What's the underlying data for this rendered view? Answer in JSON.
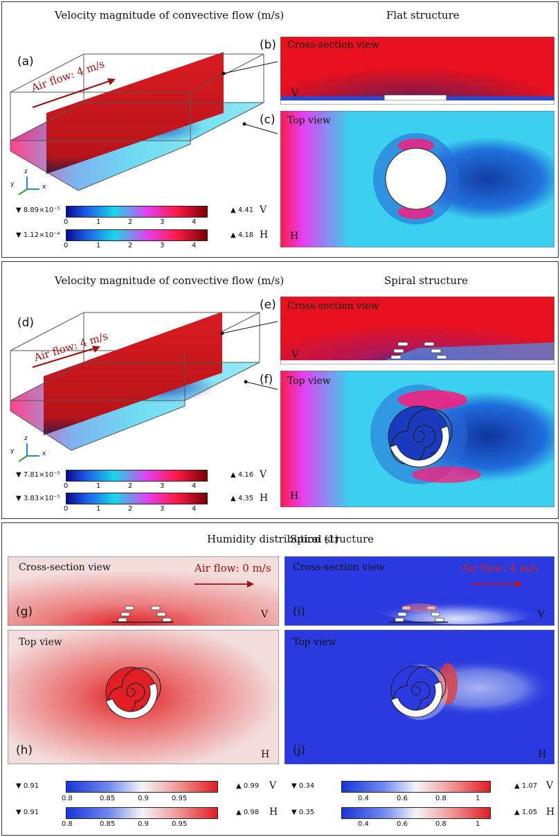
{
  "panel1": {
    "title_left": "Velocity magnitude of convective flow (m/s)",
    "title_right": "Flat structure",
    "label_a": "(a)",
    "label_b": "(b)",
    "label_c": "(c)",
    "air_flow": "Air flow: 4 m/s",
    "cross_section": "Cross-section view",
    "top_view": "Top view",
    "v_tag": "V",
    "h_tag": "H",
    "axes": {
      "z": "z",
      "y": "y",
      "x": "x"
    },
    "colorbar_V": {
      "min": "▼ 8.89×10⁻⁵",
      "max": "▲ 4.41",
      "tag": "V",
      "ticks": [
        "0",
        "1",
        "2",
        "3",
        "4"
      ]
    },
    "colorbar_H": {
      "min": "▼ 1.12×10⁻⁴",
      "max": "▲ 4.18",
      "tag": "H",
      "ticks": [
        "0",
        "1",
        "2",
        "3",
        "4"
      ]
    }
  },
  "panel2": {
    "title_left": "Velocity magnitude of convective flow (m/s)",
    "title_right": "Spiral structure",
    "label_d": "(d)",
    "label_e": "(e)",
    "label_f": "(f)",
    "air_flow": "Air flow: 4 m/s",
    "cross_section": "Cross-section view",
    "top_view": "Top view",
    "v_tag": "V",
    "h_tag": "H",
    "axes": {
      "z": "z",
      "y": "y",
      "x": "x"
    },
    "colorbar_V": {
      "min": "▼ 7.81×10⁻⁵",
      "max": "▲ 4.16",
      "tag": "V",
      "ticks": [
        "0",
        "1",
        "2",
        "3",
        "4"
      ]
    },
    "colorbar_H": {
      "min": "▼ 3.83×10⁻⁵",
      "max": "▲ 4.35",
      "tag": "H",
      "ticks": [
        "0",
        "1",
        "2",
        "3",
        "4"
      ]
    }
  },
  "panel3": {
    "title_left": "Humidity distribution (1)",
    "title_right": "Spiral structure",
    "label_g": "(g)",
    "label_h": "(h)",
    "label_i": "(i)",
    "label_j": "(j)",
    "cross_section_left": "Cross-section view",
    "cross_section_right": "Cross-section view",
    "top_view_left": "Top view",
    "top_view_right": "Top view",
    "air_flow_left": "Air flow: 0 m/s",
    "air_flow_right": "Air flow: 4 m/s",
    "v_tag": "V",
    "h_tag": "H",
    "left_V": {
      "min": "▼ 0.91",
      "max": "▲ 0.99",
      "tag": "V",
      "ticks": [
        "0.8",
        "0.85",
        "0.9",
        "0.95"
      ]
    },
    "left_H": {
      "min": "▼ 0.91",
      "max": "▲ 0.98",
      "tag": "H",
      "ticks": [
        "0.8",
        "0.85",
        "0.9",
        "0.95"
      ]
    },
    "right_V": {
      "min": "▼ 0.34",
      "max": "▲ 1.07",
      "tag": "V",
      "ticks": [
        "0.4",
        "0.6",
        "0.8",
        "1"
      ]
    },
    "right_H": {
      "min": "▼ 0.35",
      "max": "▲ 1.05",
      "tag": "H",
      "ticks": [
        "0.4",
        "0.6",
        "0.8",
        "1"
      ]
    }
  },
  "colors": {
    "velocity_high": "#e8101e",
    "velocity_low": "#0a0a8c",
    "velocity_mid": "#17d8e8",
    "humidity_high": "#e01e24",
    "humidity_low": "#1a35d9"
  }
}
